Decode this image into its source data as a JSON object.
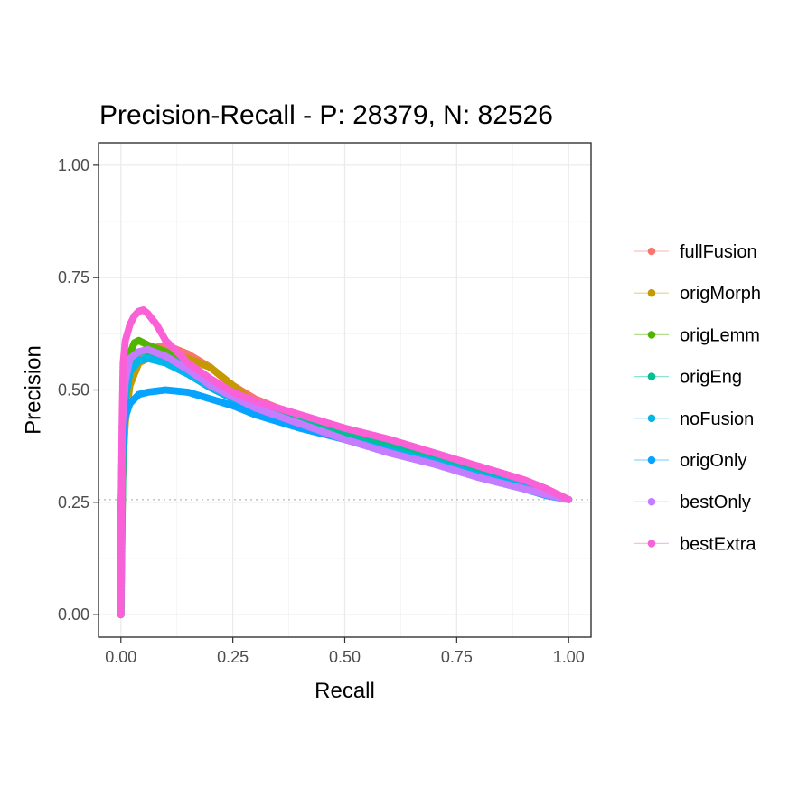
{
  "chart_data": {
    "type": "line",
    "title": "Precision-Recall - P: 28379, N: 82526",
    "xlabel": "Recall",
    "ylabel": "Precision",
    "xlim": [
      -0.05,
      1.05
    ],
    "ylim": [
      -0.05,
      1.05
    ],
    "x_ticks": [
      "0.00",
      "0.25",
      "0.50",
      "0.75",
      "1.00"
    ],
    "y_ticks": [
      "0.00",
      "0.25",
      "0.50",
      "0.75",
      "1.00"
    ],
    "grid": true,
    "legend_position": "right",
    "baseline_precision": 0.256,
    "series": [
      {
        "name": "fullFusion",
        "color": "#F8766D",
        "points": [
          [
            0,
            0
          ],
          [
            0,
            0.19
          ],
          [
            0.005,
            0.33
          ],
          [
            0.01,
            0.45
          ],
          [
            0.02,
            0.52
          ],
          [
            0.04,
            0.57
          ],
          [
            0.06,
            0.59
          ],
          [
            0.1,
            0.6
          ],
          [
            0.15,
            0.58
          ],
          [
            0.2,
            0.55
          ],
          [
            0.25,
            0.51
          ],
          [
            0.3,
            0.48
          ],
          [
            0.4,
            0.44
          ],
          [
            0.5,
            0.41
          ],
          [
            0.6,
            0.385
          ],
          [
            0.7,
            0.355
          ],
          [
            0.8,
            0.33
          ],
          [
            0.9,
            0.3
          ],
          [
            0.95,
            0.28
          ],
          [
            1.0,
            0.256
          ]
        ]
      },
      {
        "name": "origMorph",
        "color": "#C49A00",
        "points": [
          [
            0,
            0
          ],
          [
            0,
            0.17
          ],
          [
            0,
            0.24
          ],
          [
            0.005,
            0.34
          ],
          [
            0.01,
            0.43
          ],
          [
            0.02,
            0.51
          ],
          [
            0.04,
            0.56
          ],
          [
            0.06,
            0.57
          ],
          [
            0.1,
            0.575
          ],
          [
            0.15,
            0.57
          ],
          [
            0.2,
            0.55
          ],
          [
            0.25,
            0.51
          ],
          [
            0.3,
            0.47
          ],
          [
            0.4,
            0.44
          ],
          [
            0.5,
            0.41
          ],
          [
            0.6,
            0.385
          ],
          [
            0.7,
            0.355
          ],
          [
            0.8,
            0.325
          ],
          [
            0.9,
            0.295
          ],
          [
            0.95,
            0.275
          ],
          [
            1.0,
            0.256
          ]
        ]
      },
      {
        "name": "origLemm",
        "color": "#53B400",
        "points": [
          [
            0,
            0
          ],
          [
            0.005,
            0.4
          ],
          [
            0.01,
            0.52
          ],
          [
            0.02,
            0.58
          ],
          [
            0.03,
            0.605
          ],
          [
            0.04,
            0.61
          ],
          [
            0.06,
            0.6
          ],
          [
            0.1,
            0.585
          ],
          [
            0.15,
            0.56
          ],
          [
            0.2,
            0.52
          ],
          [
            0.25,
            0.49
          ],
          [
            0.3,
            0.465
          ],
          [
            0.4,
            0.43
          ],
          [
            0.5,
            0.4
          ],
          [
            0.6,
            0.375
          ],
          [
            0.7,
            0.35
          ],
          [
            0.8,
            0.32
          ],
          [
            0.9,
            0.29
          ],
          [
            0.95,
            0.275
          ],
          [
            1.0,
            0.256
          ]
        ]
      },
      {
        "name": "origEng",
        "color": "#00C094",
        "points": [
          [
            0,
            0
          ],
          [
            0.005,
            0.42
          ],
          [
            0.01,
            0.5
          ],
          [
            0.02,
            0.56
          ],
          [
            0.04,
            0.585
          ],
          [
            0.06,
            0.585
          ],
          [
            0.1,
            0.575
          ],
          [
            0.15,
            0.55
          ],
          [
            0.2,
            0.52
          ],
          [
            0.25,
            0.49
          ],
          [
            0.3,
            0.465
          ],
          [
            0.4,
            0.43
          ],
          [
            0.5,
            0.4
          ],
          [
            0.6,
            0.375
          ],
          [
            0.7,
            0.345
          ],
          [
            0.8,
            0.315
          ],
          [
            0.9,
            0.285
          ],
          [
            0.95,
            0.27
          ],
          [
            1.0,
            0.256
          ]
        ]
      },
      {
        "name": "noFusion",
        "color": "#00B6EB",
        "points": [
          [
            0,
            0
          ],
          [
            0,
            0.19
          ],
          [
            0.005,
            0.4
          ],
          [
            0.01,
            0.48
          ],
          [
            0.02,
            0.54
          ],
          [
            0.04,
            0.565
          ],
          [
            0.06,
            0.57
          ],
          [
            0.1,
            0.56
          ],
          [
            0.15,
            0.535
          ],
          [
            0.2,
            0.505
          ],
          [
            0.25,
            0.48
          ],
          [
            0.3,
            0.455
          ],
          [
            0.4,
            0.42
          ],
          [
            0.5,
            0.39
          ],
          [
            0.6,
            0.365
          ],
          [
            0.7,
            0.34
          ],
          [
            0.8,
            0.31
          ],
          [
            0.9,
            0.285
          ],
          [
            0.95,
            0.27
          ],
          [
            1.0,
            0.256
          ]
        ]
      },
      {
        "name": "origOnly",
        "color": "#06A4FF",
        "points": [
          [
            0,
            0
          ],
          [
            0,
            0.2
          ],
          [
            0.002,
            0.33
          ],
          [
            0.005,
            0.4
          ],
          [
            0.01,
            0.44
          ],
          [
            0.02,
            0.47
          ],
          [
            0.04,
            0.49
          ],
          [
            0.06,
            0.495
          ],
          [
            0.1,
            0.5
          ],
          [
            0.15,
            0.495
          ],
          [
            0.2,
            0.48
          ],
          [
            0.25,
            0.465
          ],
          [
            0.3,
            0.445
          ],
          [
            0.4,
            0.415
          ],
          [
            0.5,
            0.39
          ],
          [
            0.6,
            0.36
          ],
          [
            0.7,
            0.335
          ],
          [
            0.8,
            0.305
          ],
          [
            0.9,
            0.28
          ],
          [
            0.95,
            0.265
          ],
          [
            1.0,
            0.256
          ]
        ]
      },
      {
        "name": "bestOnly",
        "color": "#C77CFF",
        "points": [
          [
            0,
            0
          ],
          [
            0.003,
            0.42
          ],
          [
            0.005,
            0.45
          ],
          [
            0.01,
            0.52
          ],
          [
            0.02,
            0.57
          ],
          [
            0.04,
            0.585
          ],
          [
            0.06,
            0.59
          ],
          [
            0.1,
            0.575
          ],
          [
            0.15,
            0.545
          ],
          [
            0.2,
            0.51
          ],
          [
            0.25,
            0.485
          ],
          [
            0.3,
            0.46
          ],
          [
            0.4,
            0.425
          ],
          [
            0.5,
            0.39
          ],
          [
            0.6,
            0.36
          ],
          [
            0.7,
            0.335
          ],
          [
            0.8,
            0.305
          ],
          [
            0.9,
            0.28
          ],
          [
            0.95,
            0.267
          ],
          [
            1.0,
            0.256
          ]
        ]
      },
      {
        "name": "bestExtra",
        "color": "#FB61D7",
        "points": [
          [
            0,
            0
          ],
          [
            0,
            0.19
          ],
          [
            0.003,
            0.44
          ],
          [
            0.005,
            0.56
          ],
          [
            0.01,
            0.61
          ],
          [
            0.02,
            0.645
          ],
          [
            0.03,
            0.665
          ],
          [
            0.04,
            0.675
          ],
          [
            0.05,
            0.678
          ],
          [
            0.06,
            0.67
          ],
          [
            0.08,
            0.645
          ],
          [
            0.1,
            0.61
          ],
          [
            0.15,
            0.56
          ],
          [
            0.2,
            0.525
          ],
          [
            0.25,
            0.495
          ],
          [
            0.3,
            0.475
          ],
          [
            0.4,
            0.445
          ],
          [
            0.5,
            0.415
          ],
          [
            0.6,
            0.39
          ],
          [
            0.7,
            0.36
          ],
          [
            0.8,
            0.33
          ],
          [
            0.9,
            0.3
          ],
          [
            0.95,
            0.28
          ],
          [
            1.0,
            0.256
          ]
        ]
      }
    ]
  }
}
